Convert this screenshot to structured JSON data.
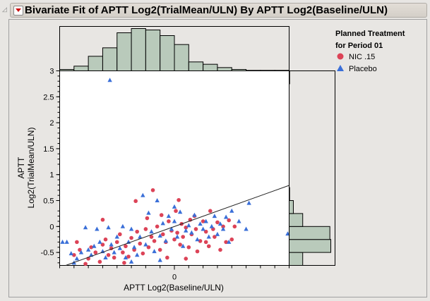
{
  "header": {
    "title": "Bivariate Fit of APTT Log2(TrialMean/ULN) By APTT Log2(Baseline/ULN)"
  },
  "legend": {
    "title_line1": "Planned Treatment",
    "title_line2": "for Period 01",
    "items": [
      {
        "label": "NIC .15",
        "marker": "circle",
        "color": "#dc4357"
      },
      {
        "label": "Placebo",
        "marker": "triangle",
        "color": "#3a6fd8"
      }
    ]
  },
  "chart_data": {
    "type": "scatter",
    "xlabel": "APTT Log2(Baseline/ULN)",
    "ylabel_line1": "APTT",
    "ylabel_line2": "Log2(TrialMean/ULN)",
    "xlim": [
      -0.8,
      0.8
    ],
    "ylim": [
      -0.75,
      3
    ],
    "x_tick_labels": [
      "0"
    ],
    "y_tick_labels": [
      "3",
      "2.5",
      "2",
      "1.5",
      "1",
      "0.5",
      "0",
      "-0.5"
    ],
    "y_tick_values": [
      3,
      2.5,
      2,
      1.5,
      1,
      0.5,
      0,
      -0.5
    ],
    "grid": false,
    "legend_placement": "right",
    "fit_line": {
      "slope": 0.99,
      "intercept": 0.0
    },
    "series": [
      {
        "name": "NIC .15",
        "color": "#dc4357",
        "marker": "circle",
        "points": [
          [
            -0.7,
            -0.55
          ],
          [
            -0.68,
            -0.3
          ],
          [
            -0.66,
            -0.45
          ],
          [
            -0.6,
            -0.62
          ],
          [
            -0.58,
            -0.4
          ],
          [
            -0.55,
            -0.5
          ],
          [
            -0.52,
            -0.68
          ],
          [
            -0.5,
            -0.35
          ],
          [
            -0.48,
            -0.25
          ],
          [
            -0.46,
            -0.55
          ],
          [
            -0.44,
            -0.42
          ],
          [
            -0.42,
            -0.6
          ],
          [
            -0.4,
            -0.3
          ],
          [
            -0.38,
            -0.15
          ],
          [
            -0.36,
            -0.5
          ],
          [
            -0.34,
            -0.38
          ],
          [
            -0.32,
            -0.58
          ],
          [
            -0.3,
            -0.22
          ],
          [
            -0.28,
            -0.45
          ],
          [
            -0.27,
            0.49
          ],
          [
            -0.26,
            -0.1
          ],
          [
            -0.24,
            -0.33
          ],
          [
            -0.22,
            -0.52
          ],
          [
            -0.2,
            -0.05
          ],
          [
            -0.19,
            0.16
          ],
          [
            -0.18,
            -0.4
          ],
          [
            -0.16,
            -0.2
          ],
          [
            -0.14,
            -0.28
          ],
          [
            -0.12,
            0.0
          ],
          [
            -0.1,
            -0.45
          ],
          [
            -0.09,
            0.22
          ],
          [
            -0.08,
            -0.15
          ],
          [
            -0.06,
            -0.3
          ],
          [
            -0.05,
            -0.6
          ],
          [
            -0.04,
            0.1
          ],
          [
            -0.02,
            -0.08
          ],
          [
            0,
            -0.25
          ],
          [
            0.01,
            0.3
          ],
          [
            0.02,
            -0.12
          ],
          [
            0.03,
            0.51
          ],
          [
            0.04,
            -0.35
          ],
          [
            0.05,
            0.05
          ],
          [
            0.06,
            -0.2
          ],
          [
            0.08,
            -0.02
          ],
          [
            0.1,
            -0.4
          ],
          [
            0.11,
            0.13
          ],
          [
            0.12,
            -0.15
          ],
          [
            0.14,
            0.2
          ],
          [
            0.15,
            -0.05
          ],
          [
            0.16,
            -0.48
          ],
          [
            0.18,
            -0.28
          ],
          [
            0.2,
            0.1
          ],
          [
            0.22,
            -0.1
          ],
          [
            0.24,
            -0.38
          ],
          [
            0.25,
            0.3
          ],
          [
            0.27,
            -0.05
          ],
          [
            0.28,
            -0.2
          ],
          [
            0.3,
            0.08
          ],
          [
            0.32,
            -0.45
          ],
          [
            0.34,
            0.0
          ],
          [
            0.36,
            -0.3
          ],
          [
            0.38,
            0.12
          ],
          [
            0.4,
            -0.25
          ],
          [
            0.42,
            0.0
          ],
          [
            -0.62,
            -0.72
          ],
          [
            -0.35,
            -0.7
          ],
          [
            -0.15,
            0.7
          ],
          [
            0.08,
            -0.62
          ],
          [
            -0.5,
            0.13
          ],
          [
            0.22,
            -0.3
          ]
        ]
      },
      {
        "name": "Placebo",
        "color": "#3a6fd8",
        "marker": "triangle",
        "points": [
          [
            -0.78,
            -0.3
          ],
          [
            -0.75,
            -0.3
          ],
          [
            -0.72,
            -0.52
          ],
          [
            -0.7,
            -0.7
          ],
          [
            -0.68,
            -0.62
          ],
          [
            -0.65,
            -0.5
          ],
          [
            -0.62,
            -0.02
          ],
          [
            -0.6,
            -0.45
          ],
          [
            -0.58,
            -0.55
          ],
          [
            -0.56,
            -0.38
          ],
          [
            -0.54,
            -0.05
          ],
          [
            -0.52,
            -0.3
          ],
          [
            -0.5,
            -0.48
          ],
          [
            -0.48,
            -0.6
          ],
          [
            -0.46,
            -0.02
          ],
          [
            -0.44,
            -0.35
          ],
          [
            -0.42,
            -0.5
          ],
          [
            -0.4,
            -0.2
          ],
          [
            -0.38,
            -0.42
          ],
          [
            -0.36,
            0.0
          ],
          [
            -0.34,
            -0.6
          ],
          [
            -0.32,
            -0.3
          ],
          [
            -0.3,
            -0.05
          ],
          [
            -0.28,
            -0.4
          ],
          [
            -0.26,
            -0.55
          ],
          [
            -0.24,
            -0.2
          ],
          [
            -0.22,
            0.6
          ],
          [
            -0.2,
            -0.35
          ],
          [
            -0.18,
            0.26
          ],
          [
            -0.16,
            -0.1
          ],
          [
            -0.14,
            -0.48
          ],
          [
            -0.12,
            0.5
          ],
          [
            -0.1,
            -0.18
          ],
          [
            -0.08,
            0.06
          ],
          [
            -0.06,
            -0.28
          ],
          [
            -0.04,
            0.2
          ],
          [
            -0.02,
            -0.05
          ],
          [
            0,
            0.1
          ],
          [
            0.02,
            -0.2
          ],
          [
            0.04,
            0.28
          ],
          [
            0.06,
            -0.38
          ],
          [
            0.08,
            -0.08
          ],
          [
            0.1,
            0.02
          ],
          [
            0.12,
            -0.12
          ],
          [
            0.14,
            0.22
          ],
          [
            0.16,
            -0.25
          ],
          [
            0.18,
            0.05
          ],
          [
            0.2,
            -0.05
          ],
          [
            0.22,
            0.1
          ],
          [
            0.24,
            -0.2
          ],
          [
            0.26,
            0.0
          ],
          [
            0.28,
            0.2
          ],
          [
            0.3,
            -0.15
          ],
          [
            0.32,
            0.05
          ],
          [
            0.34,
            -0.05
          ],
          [
            0.36,
            0.18
          ],
          [
            0.38,
            -0.3
          ],
          [
            0.4,
            0.3
          ],
          [
            0.45,
            0.1
          ],
          [
            0.5,
            -0.05
          ],
          [
            0.52,
            0.45
          ],
          [
            -0.45,
            2.82
          ],
          [
            0.79,
            -0.14
          ],
          [
            -0.3,
            -0.68
          ],
          [
            -0.1,
            -0.65
          ],
          [
            0.0,
            0.38
          ]
        ]
      }
    ],
    "x_histogram": {
      "bin_start": -0.8,
      "bin_width": 0.1,
      "counts": [
        3,
        10,
        31,
        49,
        81,
        90,
        87,
        75,
        56,
        19,
        14,
        7,
        3,
        1,
        1,
        1
      ]
    },
    "y_histogram": {
      "bin_start": -0.75,
      "bin_width": 0.25,
      "counts": [
        29,
        89,
        87,
        29,
        9,
        1,
        0,
        0,
        0,
        0,
        0,
        0,
        0,
        0,
        1
      ]
    },
    "histogram_color": "#b9cabb"
  }
}
